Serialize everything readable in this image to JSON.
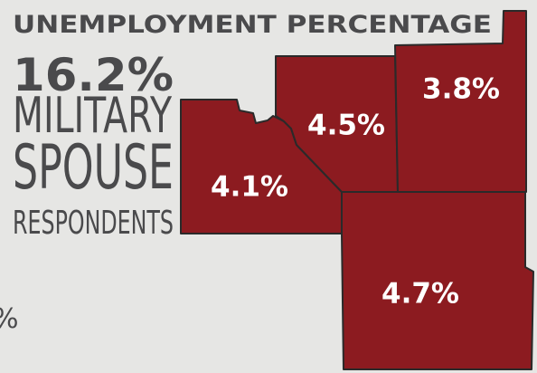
{
  "title": "UNEMPLOYMENT PERCENTAGE",
  "headline": {
    "value": "16.2%",
    "lines": [
      "MILITARY",
      "SPOUSE",
      "RESPONDENTS"
    ]
  },
  "regions": [
    {
      "label": "4.1%"
    },
    {
      "label": "4.5%"
    },
    {
      "label": "3.8%"
    },
    {
      "label": "4.7%"
    }
  ],
  "fragment": "%"
}
